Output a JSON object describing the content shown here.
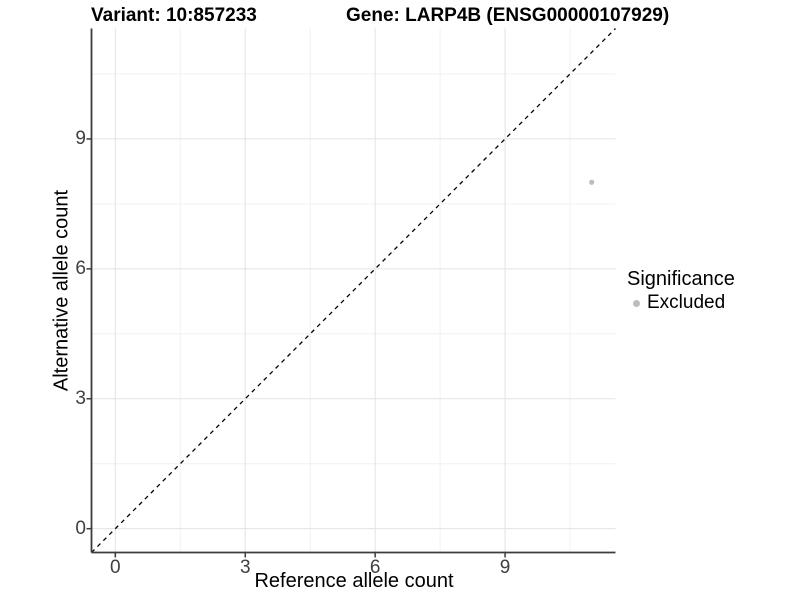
{
  "header": {
    "title_variant": "Variant: 10:857233",
    "title_gene": "Gene: LARP4B (ENSG00000107929)"
  },
  "chart_data": {
    "type": "scatter",
    "title_left": "Variant: 10:857233",
    "title_right": "Gene: LARP4B (ENSG00000107929)",
    "xlabel": "Reference allele count",
    "ylabel": "Alternative allele count",
    "xlim": [
      -0.55,
      11.55
    ],
    "ylim": [
      -0.55,
      11.55
    ],
    "x_ticks": [
      0,
      3,
      6,
      9
    ],
    "y_ticks": [
      0,
      3,
      6,
      9
    ],
    "x_minor_ticks": [
      1.5,
      4.5,
      7.5,
      10.5
    ],
    "y_minor_ticks": [
      1.5,
      4.5,
      7.5,
      10.5
    ],
    "grid": true,
    "series": [
      {
        "name": "Excluded",
        "points": [
          {
            "x": 11,
            "y": 8
          }
        ],
        "color": "#bdbdbd",
        "point_radius": 2.6
      }
    ],
    "identity_line": {
      "type": "dashed",
      "slope": 1,
      "intercept": 0,
      "color": "#000000"
    },
    "legend": {
      "title": "Significance",
      "position": "right",
      "items": [
        {
          "label": "Excluded",
          "color": "#bdbdbd"
        }
      ]
    }
  },
  "colors": {
    "background": "#ffffff",
    "grid_major": "#e3e3e3",
    "grid_minor": "#f0f0f0",
    "axis_line": "#3c3c3c",
    "tick_mark": "#3c3c3c",
    "tick_label": "#404040",
    "point": "#bdbdbd",
    "identity_line": "#000000"
  }
}
